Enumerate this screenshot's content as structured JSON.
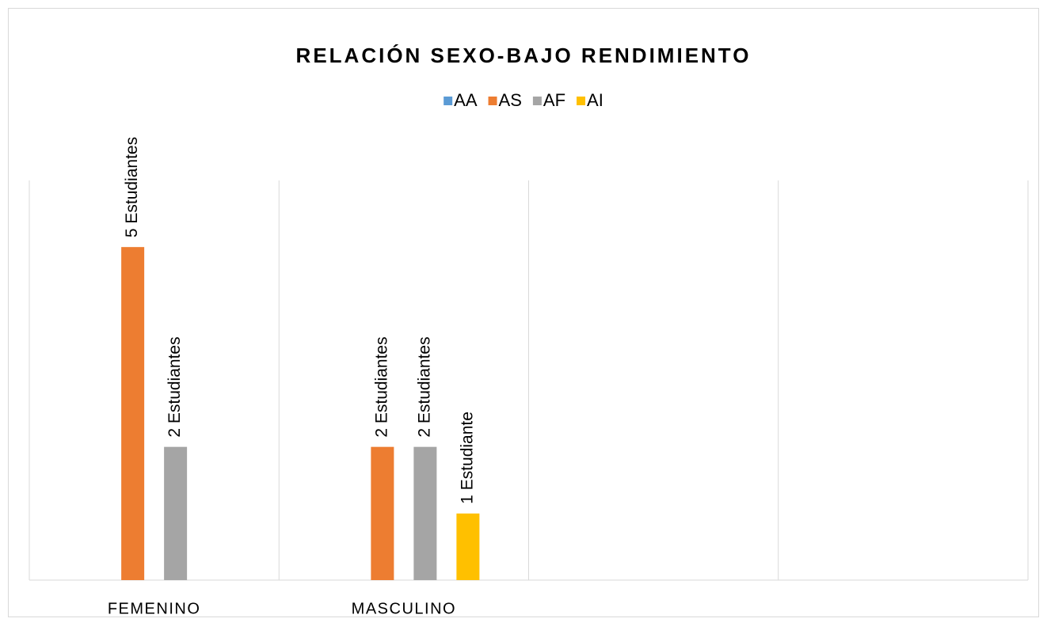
{
  "chart_data": {
    "type": "bar",
    "title": "RELACIÓN SEXO-BAJO RENDIMIENTO",
    "categories": [
      "FEMENINO",
      "MASCULINO",
      null,
      null
    ],
    "series": [
      {
        "name": "AA",
        "color": "#5b9bd5",
        "values": [
          null,
          null,
          null,
          null
        ]
      },
      {
        "name": "AS",
        "color": "#ed7d31",
        "values": [
          5,
          2,
          null,
          null
        ],
        "value_labels": [
          "5 Estudiantes",
          "2 Estudiantes",
          null,
          null
        ]
      },
      {
        "name": "AF",
        "color": "#a5a5a5",
        "values": [
          2,
          2,
          null,
          null
        ],
        "value_labels": [
          "2 Estudiantes",
          "2 Estudiantes",
          null,
          null
        ]
      },
      {
        "name": "AI",
        "color": "#ffc000",
        "values": [
          null,
          1,
          null,
          null
        ],
        "value_labels": [
          null,
          "1 Estudiante",
          null,
          null
        ]
      }
    ],
    "ylim": [
      0,
      6
    ],
    "legend": "top",
    "grid": true
  }
}
